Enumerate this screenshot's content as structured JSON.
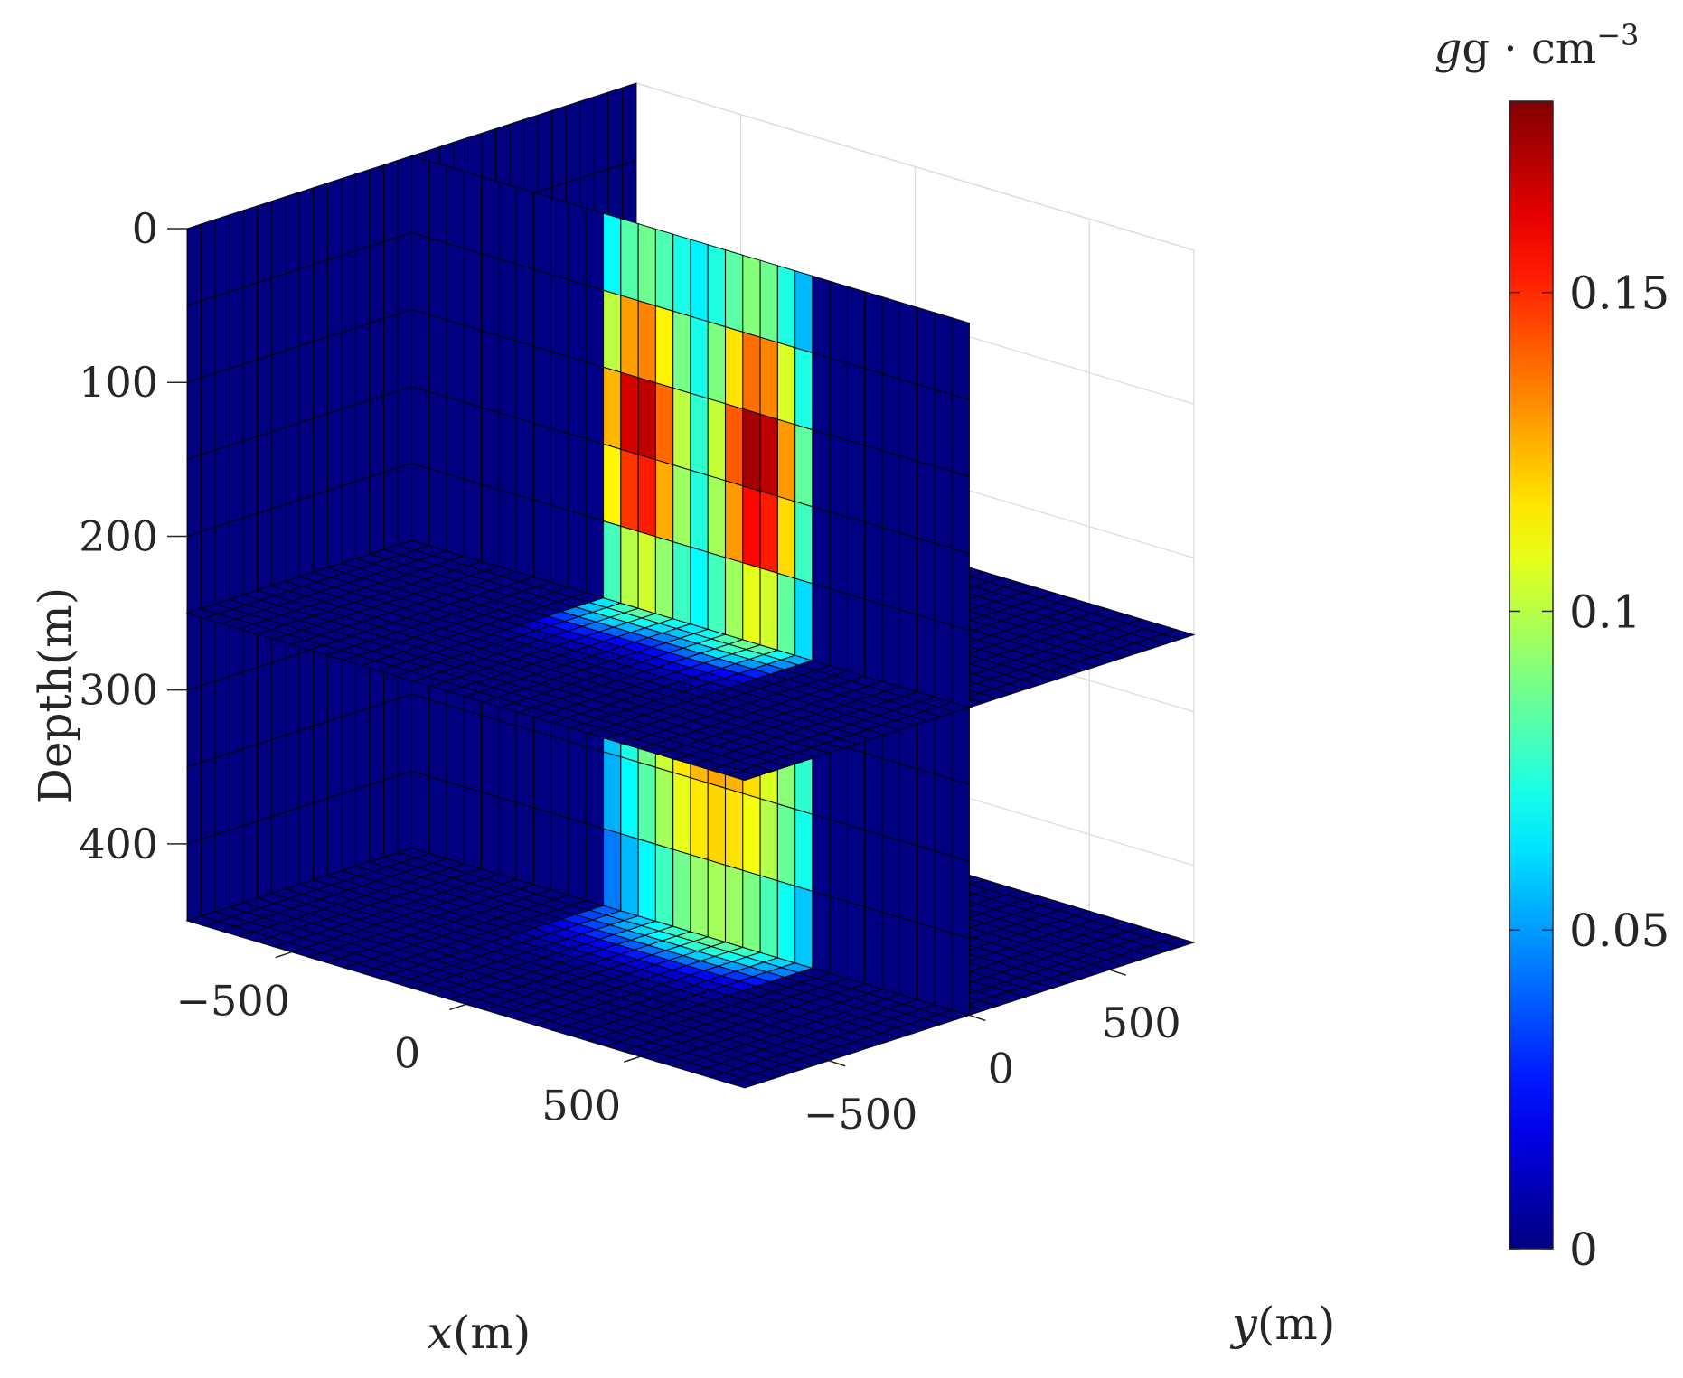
{
  "chart_data": {
    "type": "3d-slice",
    "colormap": "jet",
    "colorbar": {
      "unit": "g · cm",
      "unit_exponent": "−3",
      "range": [
        0,
        0.18
      ],
      "ticks": [
        {
          "value": 0,
          "label": "0"
        },
        {
          "value": 0.05,
          "label": "0.05"
        },
        {
          "value": 0.1,
          "label": "0.1"
        },
        {
          "value": 0.15,
          "label": "0.15"
        }
      ]
    },
    "axes": {
      "x": {
        "label_var": "x",
        "label_unit": "(m)",
        "range": [
          -800,
          800
        ],
        "ticks": [
          {
            "value": -500,
            "label": "−500"
          },
          {
            "value": 0,
            "label": "0"
          },
          {
            "value": 500,
            "label": "500"
          }
        ]
      },
      "y": {
        "label_var": "y",
        "label_unit": "(m)",
        "range": [
          -800,
          800
        ],
        "ticks": [
          {
            "value": -500,
            "label": "−500"
          },
          {
            "value": 0,
            "label": "0"
          },
          {
            "value": 500,
            "label": "500"
          }
        ]
      },
      "depth": {
        "label": "Depth(m)",
        "range": [
          0,
          450
        ],
        "reversed": true,
        "ticks": [
          {
            "value": 0,
            "label": "0"
          },
          {
            "value": 100,
            "label": "100"
          },
          {
            "value": 200,
            "label": "200"
          },
          {
            "value": 300,
            "label": "300"
          },
          {
            "value": 400,
            "label": "400"
          }
        ]
      }
    },
    "grid": true,
    "slices": [
      {
        "type": "x-plane",
        "x": -800
      },
      {
        "type": "y-plane",
        "y": 0
      },
      {
        "type": "depth-plane",
        "depth": 250
      },
      {
        "type": "depth-plane",
        "depth": 450
      }
    ],
    "bodies": [
      {
        "name": "",
        "x_range": [
          -250,
          350
        ],
        "depth_range": [
          0,
          250
        ],
        "peak_density": 0.175,
        "peaks_x": [
          -150,
          200
        ]
      },
      {
        "name": "",
        "x_range": [
          -250,
          350
        ],
        "depth_range": [
          300,
          450
        ],
        "peak_density": 0.135
      }
    ]
  }
}
